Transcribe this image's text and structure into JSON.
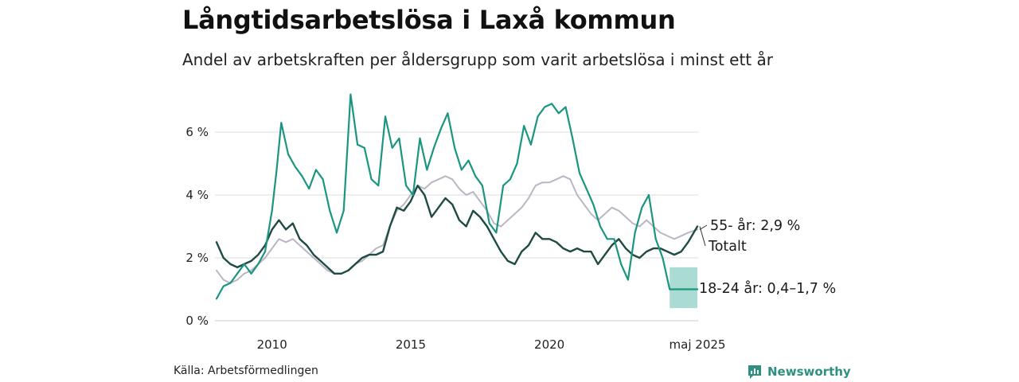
{
  "header": {
    "title": "Långtidsarbetslösa i Laxå kommun",
    "subtitle": "Andel av arbetskraften per åldersgrupp som varit arbetslösa i minst ett år"
  },
  "footer": {
    "source": "Källa: Arbetsförmedlingen",
    "brand": "Newsworthy",
    "brand_icon": "bar-chart-icon"
  },
  "colors": {
    "youth": "#1a9580",
    "total": "#1f4b44",
    "senior": "#bab6c4",
    "youth_band": "#8fd0c4",
    "grid": "#dddddd"
  },
  "chart_data": {
    "type": "line",
    "x_unit": "month",
    "x_range": [
      "2008-01",
      "2025-05"
    ],
    "y_range": [
      0,
      7.2
    ],
    "y_ticks": [
      {
        "value": 0,
        "label": "0 %"
      },
      {
        "value": 2,
        "label": "2 %"
      },
      {
        "value": 4,
        "label": "4 %"
      },
      {
        "value": 6,
        "label": "6 %"
      }
    ],
    "x_ticks": [
      {
        "date": "2010-01",
        "label": "2010"
      },
      {
        "date": "2015-01",
        "label": "2015"
      },
      {
        "date": "2020-01",
        "label": "2020"
      },
      {
        "date": "2025-05",
        "label": "maj 2025"
      }
    ],
    "grid": "horizontal",
    "series": [
      {
        "key": "senior",
        "end_label": "55- år: 2,9 %",
        "points": [
          [
            "2008-01",
            1.6
          ],
          [
            "2008-04",
            1.3
          ],
          [
            "2008-07",
            1.2
          ],
          [
            "2008-10",
            1.3
          ],
          [
            "2009-01",
            1.5
          ],
          [
            "2009-04",
            1.6
          ],
          [
            "2009-07",
            1.8
          ],
          [
            "2009-10",
            2.0
          ],
          [
            "2010-01",
            2.3
          ],
          [
            "2010-04",
            2.6
          ],
          [
            "2010-07",
            2.5
          ],
          [
            "2010-10",
            2.6
          ],
          [
            "2011-01",
            2.4
          ],
          [
            "2011-04",
            2.2
          ],
          [
            "2011-07",
            2.0
          ],
          [
            "2011-10",
            1.8
          ],
          [
            "2012-01",
            1.6
          ],
          [
            "2012-04",
            1.5
          ],
          [
            "2012-07",
            1.5
          ],
          [
            "2012-10",
            1.6
          ],
          [
            "2013-01",
            1.8
          ],
          [
            "2013-04",
            1.9
          ],
          [
            "2013-07",
            2.1
          ],
          [
            "2013-10",
            2.3
          ],
          [
            "2014-01",
            2.4
          ],
          [
            "2014-04",
            3.0
          ],
          [
            "2014-07",
            3.5
          ],
          [
            "2014-10",
            3.7
          ],
          [
            "2015-01",
            4.0
          ],
          [
            "2015-04",
            4.3
          ],
          [
            "2015-07",
            4.2
          ],
          [
            "2015-10",
            4.4
          ],
          [
            "2016-01",
            4.5
          ],
          [
            "2016-04",
            4.6
          ],
          [
            "2016-07",
            4.5
          ],
          [
            "2016-10",
            4.2
          ],
          [
            "2017-01",
            4.0
          ],
          [
            "2017-04",
            4.1
          ],
          [
            "2017-07",
            3.8
          ],
          [
            "2017-10",
            3.5
          ],
          [
            "2018-01",
            3.1
          ],
          [
            "2018-04",
            3.0
          ],
          [
            "2018-07",
            3.2
          ],
          [
            "2018-10",
            3.4
          ],
          [
            "2019-01",
            3.6
          ],
          [
            "2019-04",
            3.9
          ],
          [
            "2019-07",
            4.3
          ],
          [
            "2019-10",
            4.4
          ],
          [
            "2020-01",
            4.4
          ],
          [
            "2020-04",
            4.5
          ],
          [
            "2020-07",
            4.6
          ],
          [
            "2020-10",
            4.5
          ],
          [
            "2021-01",
            4.0
          ],
          [
            "2021-04",
            3.7
          ],
          [
            "2021-07",
            3.4
          ],
          [
            "2021-10",
            3.2
          ],
          [
            "2022-01",
            3.4
          ],
          [
            "2022-04",
            3.6
          ],
          [
            "2022-07",
            3.5
          ],
          [
            "2022-10",
            3.3
          ],
          [
            "2023-01",
            3.1
          ],
          [
            "2023-04",
            3.0
          ],
          [
            "2023-07",
            3.2
          ],
          [
            "2023-10",
            3.0
          ],
          [
            "2024-01",
            2.8
          ],
          [
            "2024-04",
            2.7
          ],
          [
            "2024-07",
            2.6
          ],
          [
            "2024-10",
            2.7
          ],
          [
            "2025-01",
            2.8
          ],
          [
            "2025-05",
            2.9
          ]
        ]
      },
      {
        "key": "total",
        "end_label": "Totalt",
        "points": [
          [
            "2008-01",
            2.5
          ],
          [
            "2008-04",
            2.0
          ],
          [
            "2008-07",
            1.8
          ],
          [
            "2008-10",
            1.7
          ],
          [
            "2009-01",
            1.8
          ],
          [
            "2009-04",
            1.9
          ],
          [
            "2009-07",
            2.1
          ],
          [
            "2009-10",
            2.4
          ],
          [
            "2010-01",
            2.9
          ],
          [
            "2010-04",
            3.2
          ],
          [
            "2010-07",
            2.9
          ],
          [
            "2010-10",
            3.1
          ],
          [
            "2011-01",
            2.6
          ],
          [
            "2011-04",
            2.4
          ],
          [
            "2011-07",
            2.1
          ],
          [
            "2011-10",
            1.9
          ],
          [
            "2012-01",
            1.7
          ],
          [
            "2012-04",
            1.5
          ],
          [
            "2012-07",
            1.5
          ],
          [
            "2012-10",
            1.6
          ],
          [
            "2013-01",
            1.8
          ],
          [
            "2013-04",
            2.0
          ],
          [
            "2013-07",
            2.1
          ],
          [
            "2013-10",
            2.1
          ],
          [
            "2014-01",
            2.2
          ],
          [
            "2014-04",
            3.0
          ],
          [
            "2014-07",
            3.6
          ],
          [
            "2014-10",
            3.5
          ],
          [
            "2015-01",
            3.8
          ],
          [
            "2015-04",
            4.3
          ],
          [
            "2015-07",
            4.0
          ],
          [
            "2015-10",
            3.3
          ],
          [
            "2016-01",
            3.6
          ],
          [
            "2016-04",
            3.9
          ],
          [
            "2016-07",
            3.7
          ],
          [
            "2016-10",
            3.2
          ],
          [
            "2017-01",
            3.0
          ],
          [
            "2017-04",
            3.5
          ],
          [
            "2017-07",
            3.3
          ],
          [
            "2017-10",
            3.0
          ],
          [
            "2018-01",
            2.6
          ],
          [
            "2018-04",
            2.2
          ],
          [
            "2018-07",
            1.9
          ],
          [
            "2018-10",
            1.8
          ],
          [
            "2019-01",
            2.2
          ],
          [
            "2019-04",
            2.4
          ],
          [
            "2019-07",
            2.8
          ],
          [
            "2019-10",
            2.6
          ],
          [
            "2020-01",
            2.6
          ],
          [
            "2020-04",
            2.5
          ],
          [
            "2020-07",
            2.3
          ],
          [
            "2020-10",
            2.2
          ],
          [
            "2021-01",
            2.3
          ],
          [
            "2021-04",
            2.2
          ],
          [
            "2021-07",
            2.2
          ],
          [
            "2021-10",
            1.8
          ],
          [
            "2022-01",
            2.1
          ],
          [
            "2022-04",
            2.4
          ],
          [
            "2022-07",
            2.6
          ],
          [
            "2022-10",
            2.3
          ],
          [
            "2023-01",
            2.1
          ],
          [
            "2023-04",
            2.0
          ],
          [
            "2023-07",
            2.2
          ],
          [
            "2023-10",
            2.3
          ],
          [
            "2024-01",
            2.3
          ],
          [
            "2024-04",
            2.2
          ],
          [
            "2024-07",
            2.1
          ],
          [
            "2024-10",
            2.2
          ],
          [
            "2025-01",
            2.5
          ],
          [
            "2025-05",
            3.0
          ]
        ]
      },
      {
        "key": "youth",
        "end_label": "18-24 år: 0,4–1,7 %",
        "range_band": {
          "from": "2024-05",
          "to": "2025-05",
          "low": 0.4,
          "high": 1.7
        },
        "points": [
          [
            "2008-01",
            0.7
          ],
          [
            "2008-04",
            1.1
          ],
          [
            "2008-07",
            1.2
          ],
          [
            "2008-10",
            1.5
          ],
          [
            "2009-01",
            1.8
          ],
          [
            "2009-04",
            1.5
          ],
          [
            "2009-07",
            1.8
          ],
          [
            "2009-10",
            2.2
          ],
          [
            "2010-01",
            3.5
          ],
          [
            "2010-03",
            4.8
          ],
          [
            "2010-05",
            6.3
          ],
          [
            "2010-08",
            5.3
          ],
          [
            "2010-11",
            4.9
          ],
          [
            "2011-02",
            4.6
          ],
          [
            "2011-05",
            4.2
          ],
          [
            "2011-08",
            4.8
          ],
          [
            "2011-11",
            4.5
          ],
          [
            "2012-02",
            3.5
          ],
          [
            "2012-05",
            2.8
          ],
          [
            "2012-08",
            3.5
          ],
          [
            "2012-11",
            7.2
          ],
          [
            "2013-02",
            5.6
          ],
          [
            "2013-05",
            5.5
          ],
          [
            "2013-08",
            4.5
          ],
          [
            "2013-11",
            4.3
          ],
          [
            "2014-02",
            6.5
          ],
          [
            "2014-05",
            5.5
          ],
          [
            "2014-08",
            5.8
          ],
          [
            "2014-11",
            4.3
          ],
          [
            "2015-02",
            4.0
          ],
          [
            "2015-05",
            5.8
          ],
          [
            "2015-08",
            4.8
          ],
          [
            "2015-11",
            5.5
          ],
          [
            "2016-02",
            6.1
          ],
          [
            "2016-05",
            6.6
          ],
          [
            "2016-08",
            5.5
          ],
          [
            "2016-11",
            4.8
          ],
          [
            "2017-02",
            5.1
          ],
          [
            "2017-05",
            4.6
          ],
          [
            "2017-08",
            4.3
          ],
          [
            "2017-11",
            3.1
          ],
          [
            "2018-02",
            2.8
          ],
          [
            "2018-05",
            4.3
          ],
          [
            "2018-08",
            4.5
          ],
          [
            "2018-11",
            5.0
          ],
          [
            "2019-02",
            6.2
          ],
          [
            "2019-05",
            5.6
          ],
          [
            "2019-08",
            6.5
          ],
          [
            "2019-11",
            6.8
          ],
          [
            "2020-02",
            6.9
          ],
          [
            "2020-05",
            6.6
          ],
          [
            "2020-08",
            6.8
          ],
          [
            "2020-11",
            5.8
          ],
          [
            "2021-02",
            4.7
          ],
          [
            "2021-05",
            4.2
          ],
          [
            "2021-08",
            3.7
          ],
          [
            "2021-11",
            3.0
          ],
          [
            "2022-02",
            2.6
          ],
          [
            "2022-05",
            2.6
          ],
          [
            "2022-08",
            1.8
          ],
          [
            "2022-11",
            1.3
          ],
          [
            "2023-02",
            2.8
          ],
          [
            "2023-05",
            3.6
          ],
          [
            "2023-08",
            4.0
          ],
          [
            "2023-11",
            2.6
          ],
          [
            "2024-02",
            2.0
          ],
          [
            "2024-05",
            1.0
          ],
          [
            "2024-08",
            1.0
          ],
          [
            "2024-11",
            1.0
          ],
          [
            "2025-02",
            1.0
          ],
          [
            "2025-05",
            1.0
          ]
        ]
      }
    ]
  }
}
